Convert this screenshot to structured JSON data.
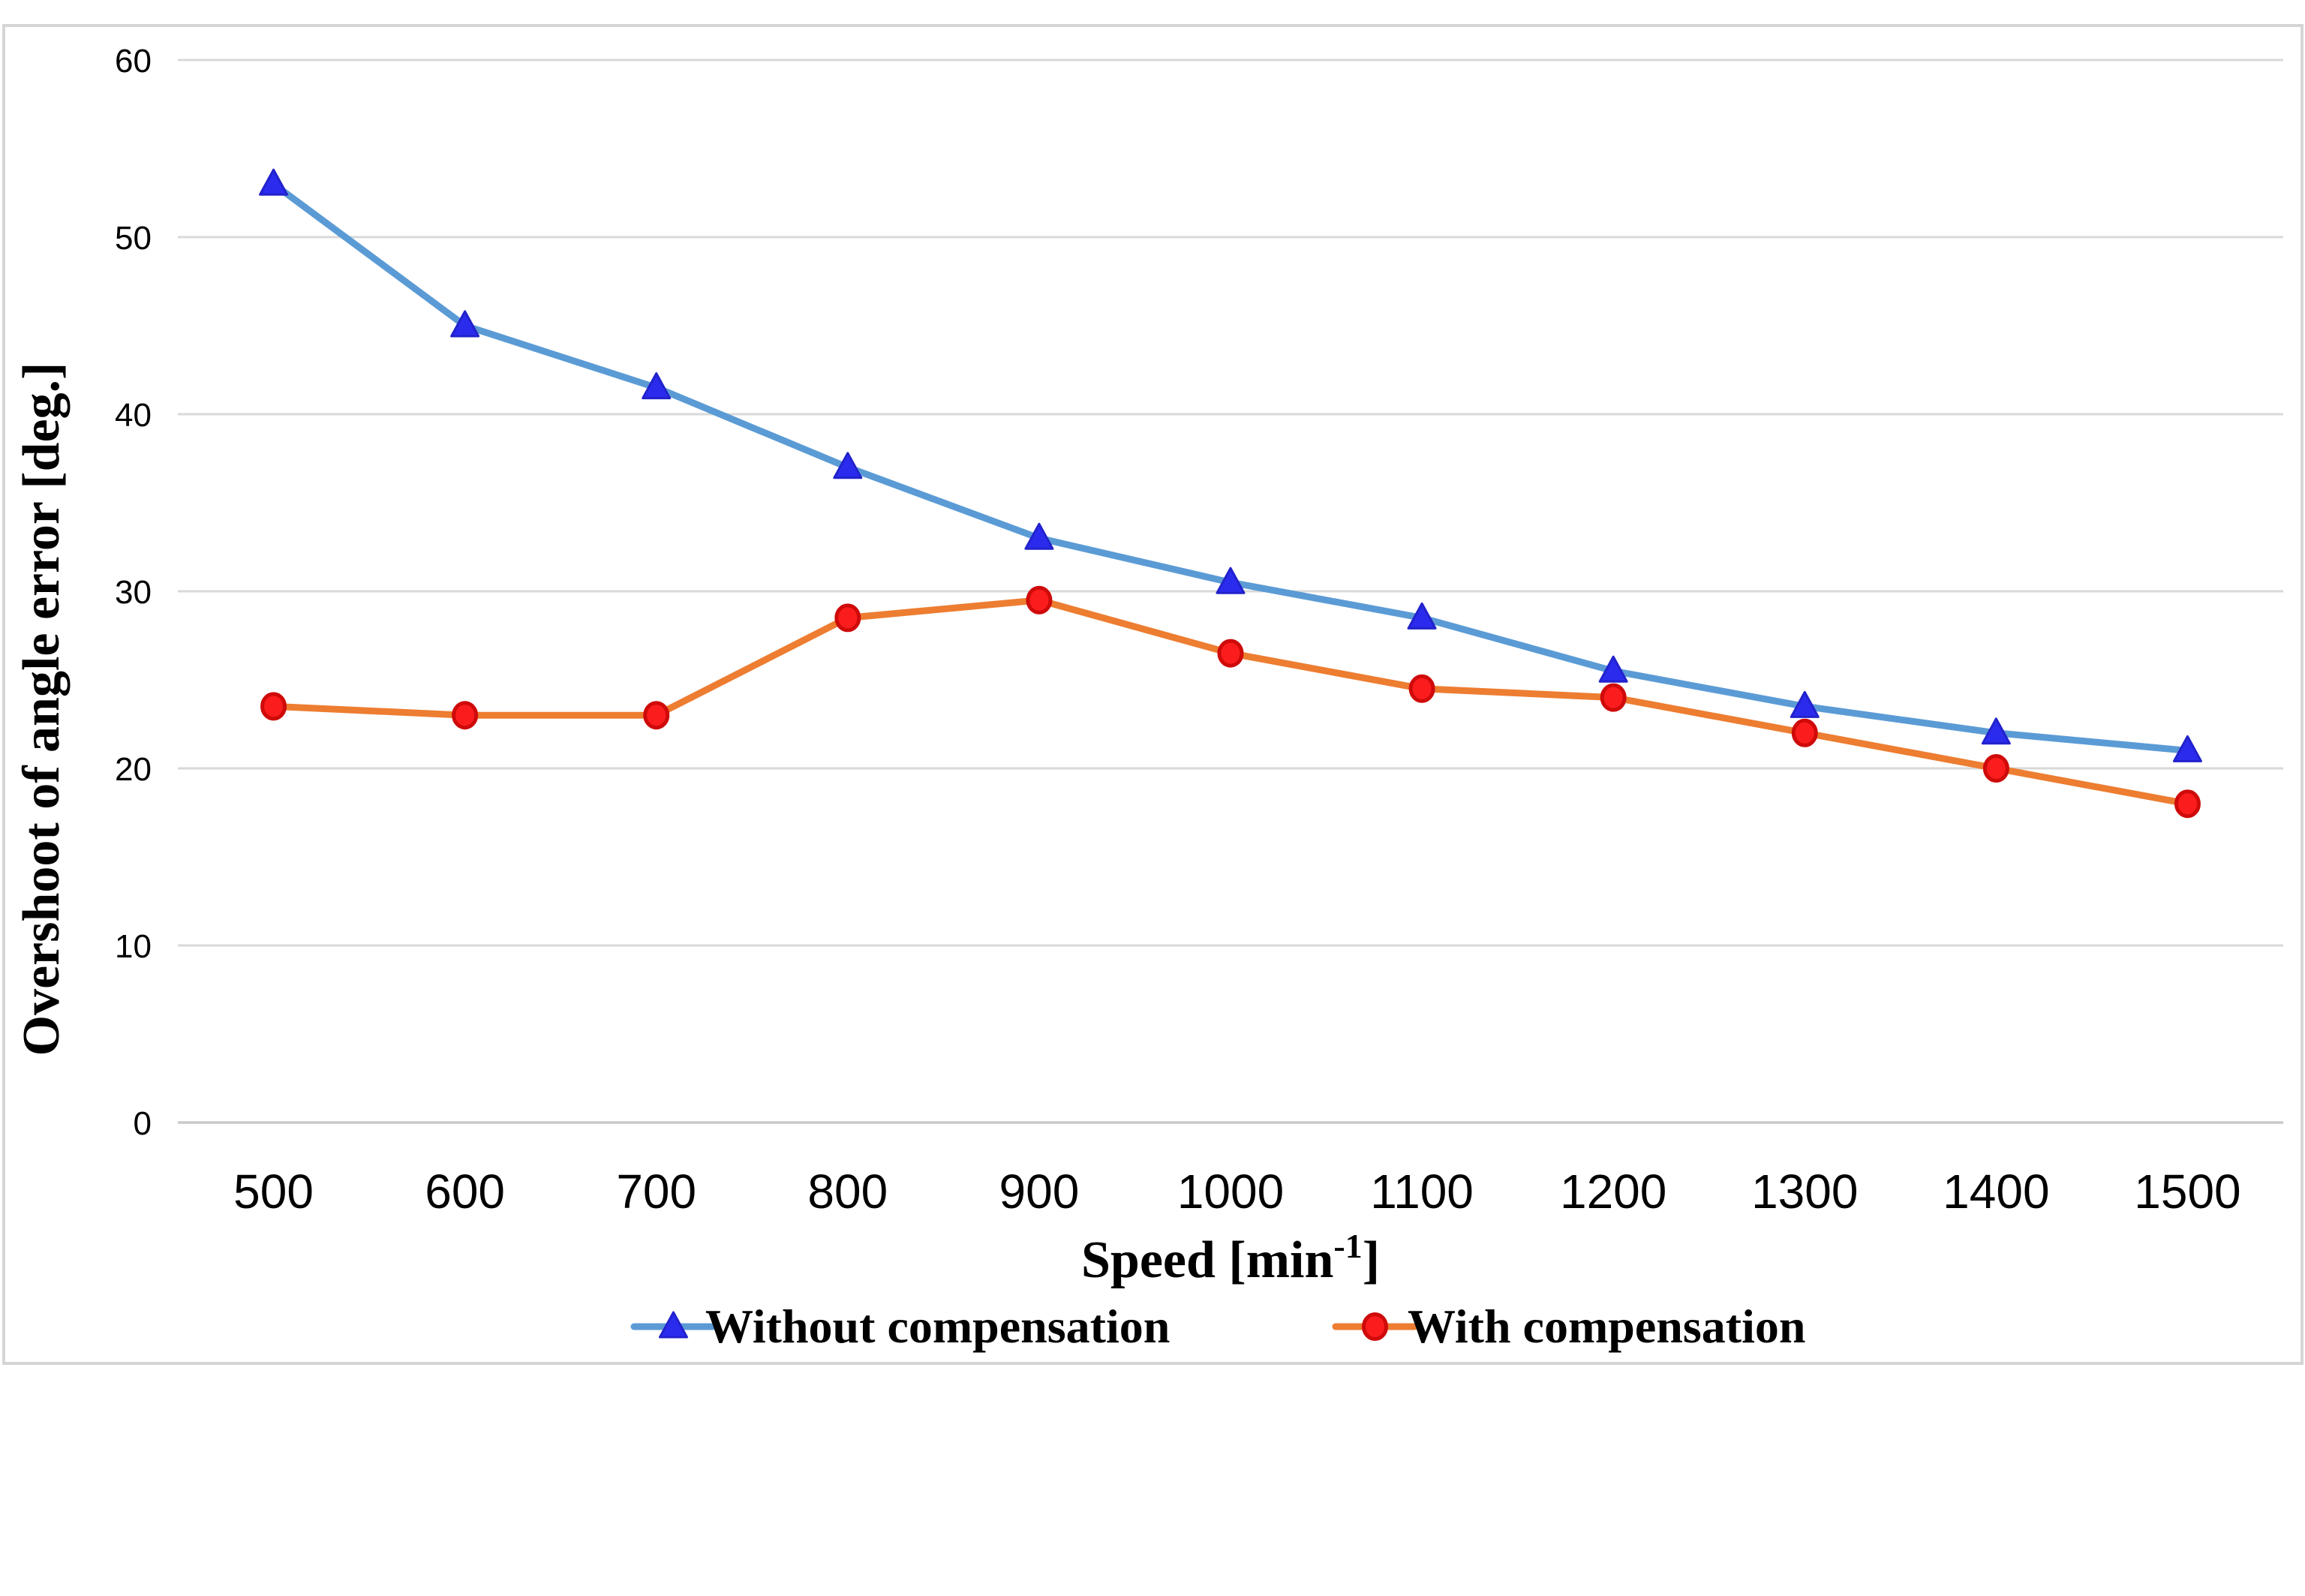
{
  "chart_data": {
    "type": "line",
    "title": "",
    "xlabel": "Speed [min⁻¹]",
    "xlabel_parts": {
      "prefix": "Speed [min",
      "superscript": "-1",
      "suffix": "]"
    },
    "ylabel": "Overshoot of angle error [deg.]",
    "categories": [
      500,
      600,
      700,
      800,
      900,
      1000,
      1100,
      1200,
      1300,
      1400,
      1500
    ],
    "y_ticks": [
      0,
      10,
      20,
      30,
      40,
      50,
      60
    ],
    "ylim": [
      0,
      60
    ],
    "grid": true,
    "legend_position": "bottom",
    "series": [
      {
        "name": "Without compensation",
        "marker": "triangle",
        "values": [
          53,
          45,
          41.5,
          37,
          33,
          30.5,
          28.5,
          25.5,
          23.5,
          22,
          21
        ],
        "line_color": "#5B9BD5",
        "marker_fill": "#2B2BEE",
        "marker_stroke": "#2222CC"
      },
      {
        "name": "With compensation",
        "marker": "circle",
        "values": [
          23.5,
          23,
          23,
          28.5,
          29.5,
          26.5,
          24.5,
          24,
          22,
          20,
          18
        ],
        "line_color": "#ED7D31",
        "marker_fill": "#FB1D1D",
        "marker_stroke": "#CF0A0A"
      }
    ],
    "colors": {
      "gridline": "#D9D9D9",
      "axis_line": "#C9C9C9",
      "chart_border": "#D5D5D5",
      "background": "#FFFFFF",
      "text": "#000000"
    }
  }
}
